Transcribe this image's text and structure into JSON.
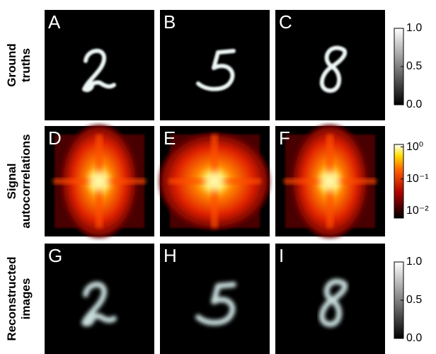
{
  "rows": [
    {
      "label_lines": [
        "Ground",
        "truths"
      ],
      "panels": [
        "A",
        "B",
        "C"
      ],
      "colorbar": {
        "scale": "linear",
        "lim": [
          0,
          1
        ],
        "colormap": "gray",
        "ticks": [
          {
            "value": 1,
            "label": "1.0"
          },
          0.5,
          {
            "value": 0,
            "label": "0.0"
          }
        ]
      }
    },
    {
      "label_lines": [
        "Signal",
        "autocorrelations"
      ],
      "panels": [
        "D",
        "E",
        "F"
      ],
      "colorbar": {
        "scale": "log",
        "lim": [
          0.006,
          1.2
        ],
        "colormap": "hot",
        "ticks": [
          {
            "value": 1,
            "label": "10⁰"
          },
          {
            "value": 0.1,
            "label": "10⁻¹"
          },
          {
            "value": 0.01,
            "label": "10⁻²"
          }
        ]
      }
    },
    {
      "label_lines": [
        "Reconstructed",
        "images"
      ],
      "panels": [
        "G",
        "H",
        "I"
      ],
      "colorbar": {
        "scale": "linear",
        "lim": [
          0,
          1
        ],
        "colormap": "gray",
        "ticks": [
          {
            "value": 1,
            "label": "1.0"
          },
          0.5,
          {
            "value": 0,
            "label": "0.0"
          }
        ]
      }
    }
  ]
}
